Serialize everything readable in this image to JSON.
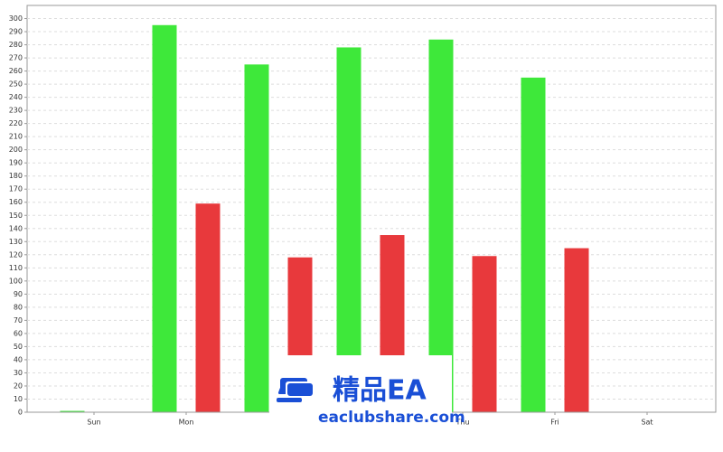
{
  "chart_data": {
    "type": "bar",
    "categories": [
      "Sun",
      "Mon",
      null,
      null,
      "Thu",
      "Fri",
      "Sat"
    ],
    "series": [
      {
        "color": "#3ee83a",
        "values": [
          1,
          295,
          265,
          278,
          284,
          255,
          0
        ]
      },
      {
        "color": "#e8393c",
        "values": [
          0,
          159,
          118,
          135,
          119,
          125,
          0
        ]
      }
    ],
    "ylim": [
      0,
      310
    ],
    "yticks": [
      0,
      10,
      20,
      30,
      40,
      50,
      60,
      70,
      80,
      90,
      100,
      110,
      120,
      130,
      140,
      150,
      160,
      170,
      180,
      190,
      200,
      210,
      220,
      230,
      240,
      250,
      260,
      270,
      280,
      290,
      300
    ],
    "grid": true,
    "annotations": [
      "精品EA",
      "eaclubshare.com"
    ]
  }
}
